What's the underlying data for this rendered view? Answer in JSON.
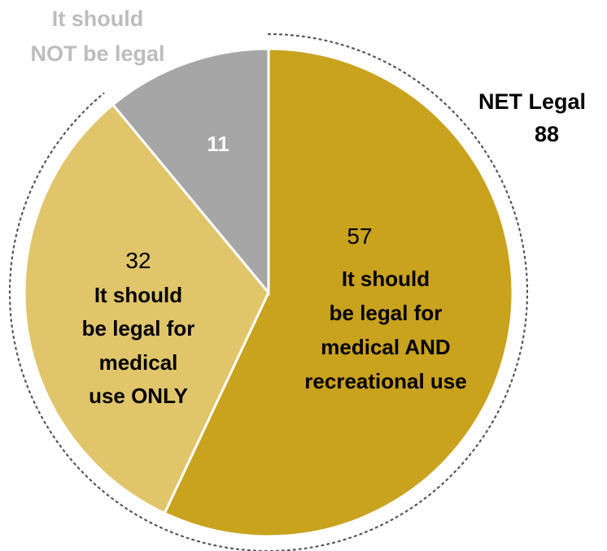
{
  "chart_data": {
    "type": "pie",
    "slices": [
      {
        "value": 57,
        "label": "57",
        "caption": [
          "It should",
          "be legal for",
          "medical AND",
          "recreational use"
        ],
        "color": "#c9a21e"
      },
      {
        "value": 32,
        "label": "32",
        "caption": [
          "It should",
          "be legal for",
          "medical",
          "use ONLY"
        ],
        "color": "#e0c56a"
      },
      {
        "value": 11,
        "label": "11",
        "caption": [
          "It should",
          "NOT be legal"
        ],
        "color": "#a6a6a6"
      }
    ],
    "net": {
      "title": "NET Legal",
      "value": "88"
    },
    "colors": {
      "outline": "#ffffff",
      "net_ring": "#555555",
      "outside_label": "#bdbdbd"
    }
  }
}
